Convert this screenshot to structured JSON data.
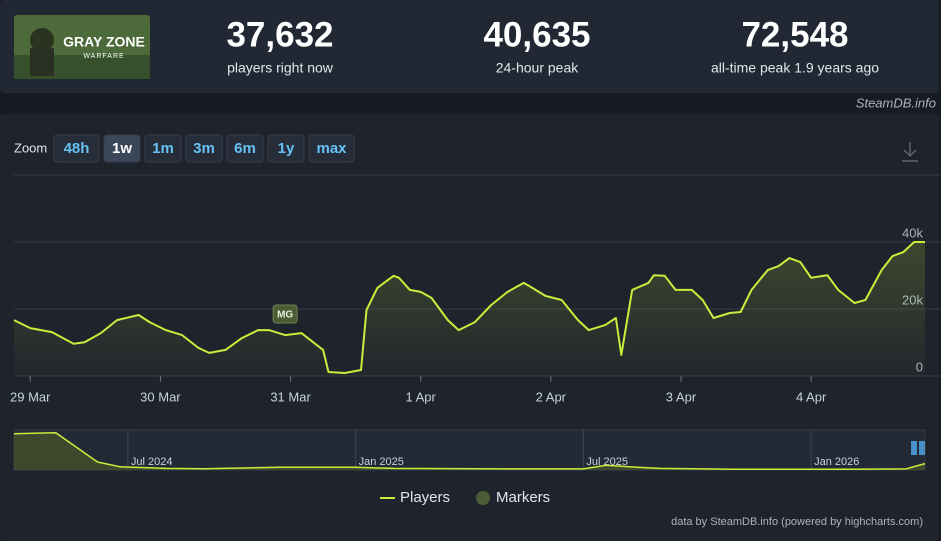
{
  "header": {
    "logo_title": "GRAY ZONE",
    "logo_subtitle": "WARFARE",
    "stats": [
      {
        "value": "37,632",
        "label": "players right now"
      },
      {
        "value": "40,635",
        "label": "24-hour peak"
      },
      {
        "value": "72,548",
        "label": "all-time peak 1.9 years ago"
      }
    ]
  },
  "source": "SteamDB.info",
  "zoom": {
    "label": "Zoom",
    "options": [
      "48h",
      "1w",
      "1m",
      "3m",
      "6m",
      "1y",
      "max"
    ],
    "active": 1
  },
  "chart_data": {
    "type": "line",
    "x": [
      -3,
      0,
      4,
      8,
      10,
      13,
      16,
      20,
      22,
      25,
      28,
      31,
      33,
      36,
      39,
      42,
      44,
      47,
      50,
      54,
      55,
      58,
      61,
      62,
      64,
      67,
      68,
      70,
      72,
      74,
      77,
      79,
      82,
      85,
      88,
      91,
      92,
      95,
      98,
      101,
      103,
      106,
      108,
      109,
      111,
      114,
      115,
      117,
      119,
      122,
      124,
      126,
      129,
      131,
      133,
      136,
      138,
      140,
      142,
      144,
      147,
      149,
      152,
      154,
      157,
      159,
      161,
      163,
      165
    ],
    "series": [
      {
        "name": "Players",
        "color": "#c8ee3c",
        "values": [
          16700,
          14300,
          13100,
          9600,
          10100,
          12800,
          16700,
          18200,
          16100,
          13700,
          12200,
          8400,
          6900,
          7800,
          11300,
          13700,
          13700,
          12200,
          12800,
          7800,
          1200,
          900,
          1800,
          19700,
          26300,
          29900,
          29300,
          25700,
          25100,
          23300,
          16700,
          13700,
          16100,
          21200,
          25100,
          27800,
          26900,
          23900,
          22700,
          16700,
          13700,
          15200,
          17300,
          6300,
          25700,
          27800,
          30100,
          29900,
          25700,
          25700,
          22700,
          17300,
          18800,
          19100,
          25700,
          31600,
          32800,
          35200,
          34000,
          29300,
          30100,
          25700,
          21800,
          22700,
          31600,
          35800,
          37000,
          40000,
          40000
        ]
      }
    ],
    "xlim": [
      -3,
      165
    ],
    "ylim": [
      0,
      60000
    ],
    "yticks": [
      0,
      {
        "value": 20000,
        "label": "20k"
      },
      {
        "value": 40000,
        "label": "40k"
      }
    ],
    "xticks": [
      {
        "value": 0,
        "label": "29 Mar"
      },
      {
        "value": 24,
        "label": "30 Mar"
      },
      {
        "value": 48,
        "label": "31 Mar"
      },
      {
        "value": 72,
        "label": "1 Apr"
      },
      {
        "value": 96,
        "label": "2 Apr"
      },
      {
        "value": 120,
        "label": "3 Apr"
      },
      {
        "value": 144,
        "label": "4 Apr"
      }
    ],
    "grid": true,
    "markers": {
      "name": "Markers",
      "color": "#4b5d35",
      "items": [
        {
          "x": 47,
          "label": "MG"
        }
      ]
    },
    "navigator": {
      "x": [
        3,
        3.5,
        4.1,
        4.6,
        5.2,
        5.8,
        7,
        8,
        10,
        12,
        13,
        16,
        18,
        18.6,
        19.2,
        20,
        22,
        25,
        26.5,
        27
      ],
      "values": [
        68000,
        69000,
        70000,
        45000,
        15000,
        6000,
        3000,
        2500,
        5000,
        5000,
        3000,
        2000,
        2000,
        9000,
        6000,
        3000,
        1500,
        1500,
        2000,
        12000
      ],
      "xlim": [
        3,
        27
      ],
      "ylim": [
        0,
        75000
      ],
      "xticks": [
        {
          "value": 6,
          "label": "Jul 2024"
        },
        {
          "value": 12,
          "label": "Jan 2025"
        },
        {
          "value": 18,
          "label": "Jul 2025"
        },
        {
          "value": 24,
          "label": "Jan 2026"
        }
      ]
    },
    "credits": "data by SteamDB.info (powered by highcharts.com)"
  }
}
